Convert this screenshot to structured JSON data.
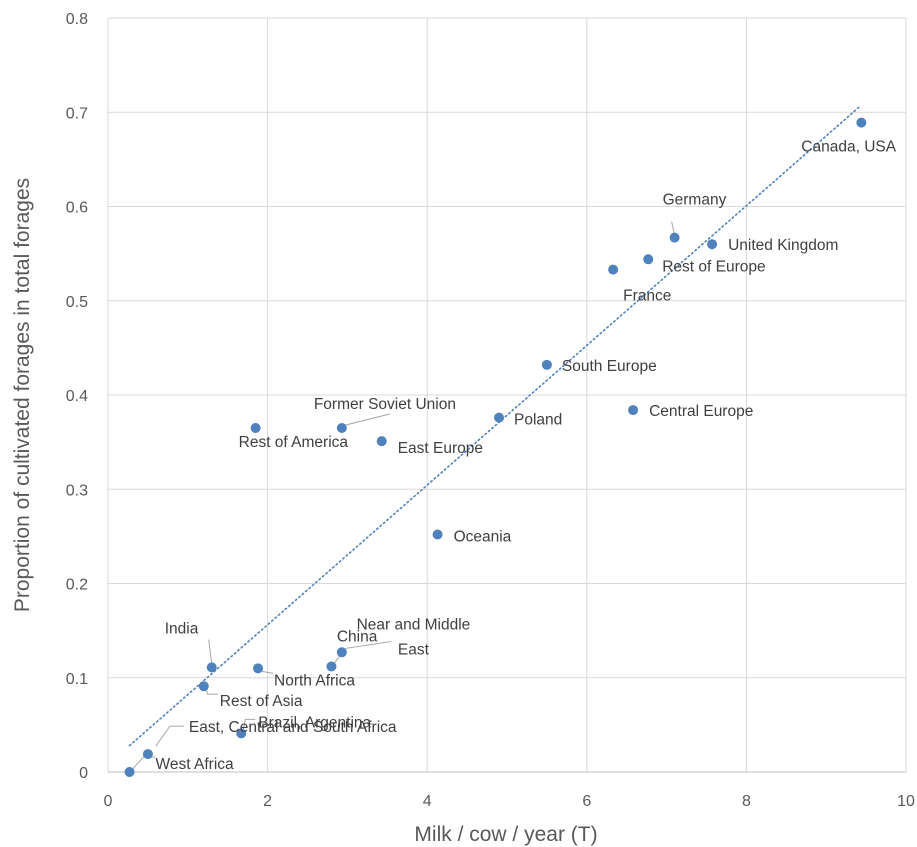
{
  "chart_data": {
    "type": "scatter",
    "title": "",
    "xlabel": "Milk / cow / year (T)",
    "ylabel": "Proportion of cultivated forages in total forages",
    "xlim": [
      0,
      10
    ],
    "ylim": [
      0,
      0.8
    ],
    "x_ticks": [
      0,
      2,
      4,
      6,
      8,
      10
    ],
    "y_ticks": [
      0,
      0.1,
      0.2,
      0.3,
      0.4,
      0.5,
      0.6,
      0.7,
      0.8
    ],
    "grid": "vertical-and-horizontal",
    "marker_color": "#4f81bd",
    "trendline": {
      "type": "linear",
      "style": "dotted",
      "color": "#4f81bd",
      "x": [
        0.27,
        9.42
      ],
      "y": [
        0.028,
        0.706
      ]
    },
    "points": [
      {
        "name": "Canada, USA",
        "x": 9.44,
        "y": 0.689
      },
      {
        "name": "Germany",
        "x": 7.1,
        "y": 0.567
      },
      {
        "name": "United Kingdom",
        "x": 7.57,
        "y": 0.56
      },
      {
        "name": "Rest of Europe",
        "x": 6.77,
        "y": 0.544
      },
      {
        "name": "France",
        "x": 6.33,
        "y": 0.533
      },
      {
        "name": "South Europe",
        "x": 5.5,
        "y": 0.432
      },
      {
        "name": "Central Europe",
        "x": 6.58,
        "y": 0.384
      },
      {
        "name": "Poland",
        "x": 4.9,
        "y": 0.376
      },
      {
        "name": "Former Soviet Union",
        "x": 2.93,
        "y": 0.365
      },
      {
        "name": "Rest of America",
        "x": 1.85,
        "y": 0.365
      },
      {
        "name": "East Europe",
        "x": 3.43,
        "y": 0.351
      },
      {
        "name": "Oceania",
        "x": 4.13,
        "y": 0.252
      },
      {
        "name": "China",
        "x": 2.93,
        "y": 0.127
      },
      {
        "name": "Near and Middle East",
        "x": 2.8,
        "y": 0.112
      },
      {
        "name": "India",
        "x": 1.3,
        "y": 0.111
      },
      {
        "name": "North Africa",
        "x": 1.88,
        "y": 0.11
      },
      {
        "name": "Rest of Asia",
        "x": 1.2,
        "y": 0.091
      },
      {
        "name": "Brazil, Argentina",
        "x": 1.67,
        "y": 0.041
      },
      {
        "name": "East, Central and South Africa",
        "x": 0.5,
        "y": 0.019
      },
      {
        "name": "West Africa",
        "x": 0.27,
        "y": 0.0
      }
    ]
  }
}
